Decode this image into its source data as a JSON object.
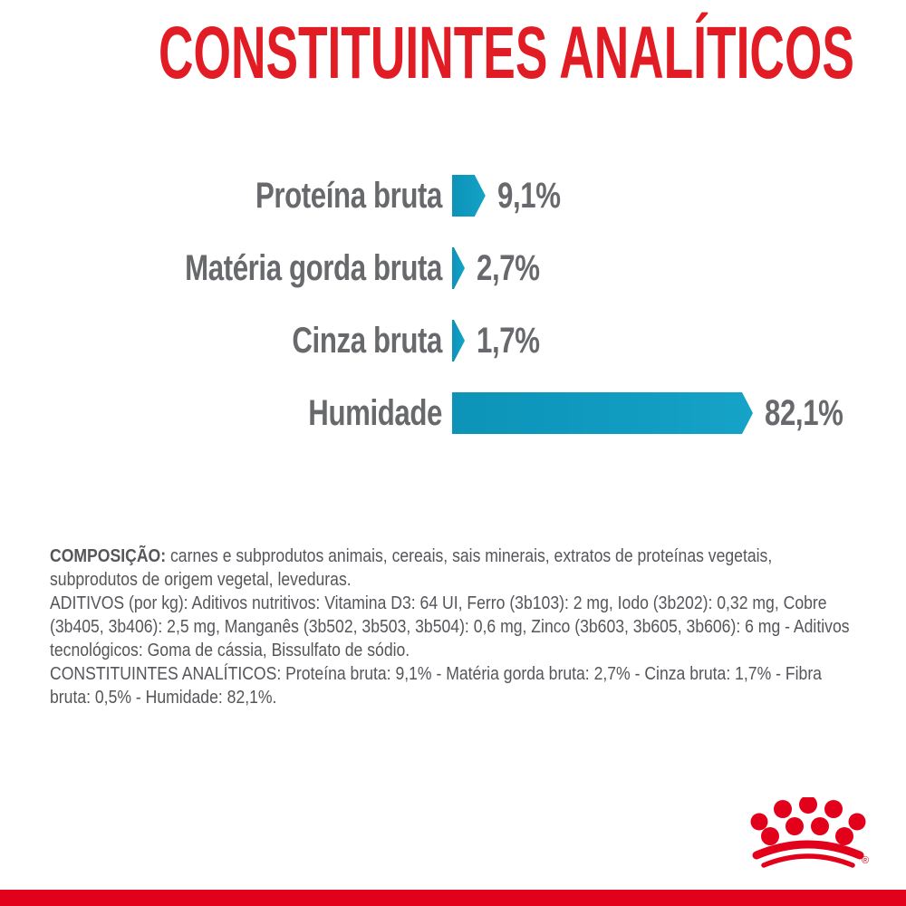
{
  "title": "CONSTITUINTES ANALÍTICOS",
  "chart_data": {
    "type": "bar",
    "orientation": "horizontal",
    "title": "CONSTITUINTES ANALÍTICOS",
    "categories": [
      "Proteína bruta",
      "Matéria gorda bruta",
      "Cinza bruta",
      "Humidade"
    ],
    "values": [
      9.1,
      2.7,
      1.7,
      82.1
    ],
    "value_labels": [
      "9,1%",
      "2,7%",
      "1,7%",
      "82,1%"
    ],
    "unit": "%",
    "bar_color": "#109BC0",
    "max_value": 82.1,
    "grid": false,
    "legend": "none"
  },
  "info": {
    "composition_label": "COMPOSIÇÃO:",
    "composition_text": "carnes e subprodutos animais, cereais, sais minerais, extratos de proteínas vegetais, subprodutos de origem vegetal, leveduras.",
    "additives_text": "ADITIVOS (por kg): Aditivos nutritivos: Vitamina D3: 64 UI, Ferro (3b103): 2 mg, Iodo (3b202): 0,32 mg, Cobre (3b405, 3b406): 2,5 mg, Manganês (3b502, 3b503, 3b504): 0,6 mg, Zinco (3b603, 3b605, 3b606): 6 mg - Aditivos tecnológicos: Goma de cássia, Bissulfato de sódio.",
    "analytical_text": "CONSTITUINTES ANALÍTICOS: Proteína bruta: 9,1% - Matéria gorda bruta: 2,7% - Cinza bruta: 1,7% - Fibra bruta: 0,5% - Humidade: 82,1%."
  },
  "logo": {
    "name": "royal-canin-crown",
    "registered_mark": "®"
  },
  "colors": {
    "title_red": "#E11C24",
    "brand_red": "#E2001A",
    "teal": "#109BC0",
    "label_gray": "#67696C",
    "text_gray": "#55565A"
  }
}
